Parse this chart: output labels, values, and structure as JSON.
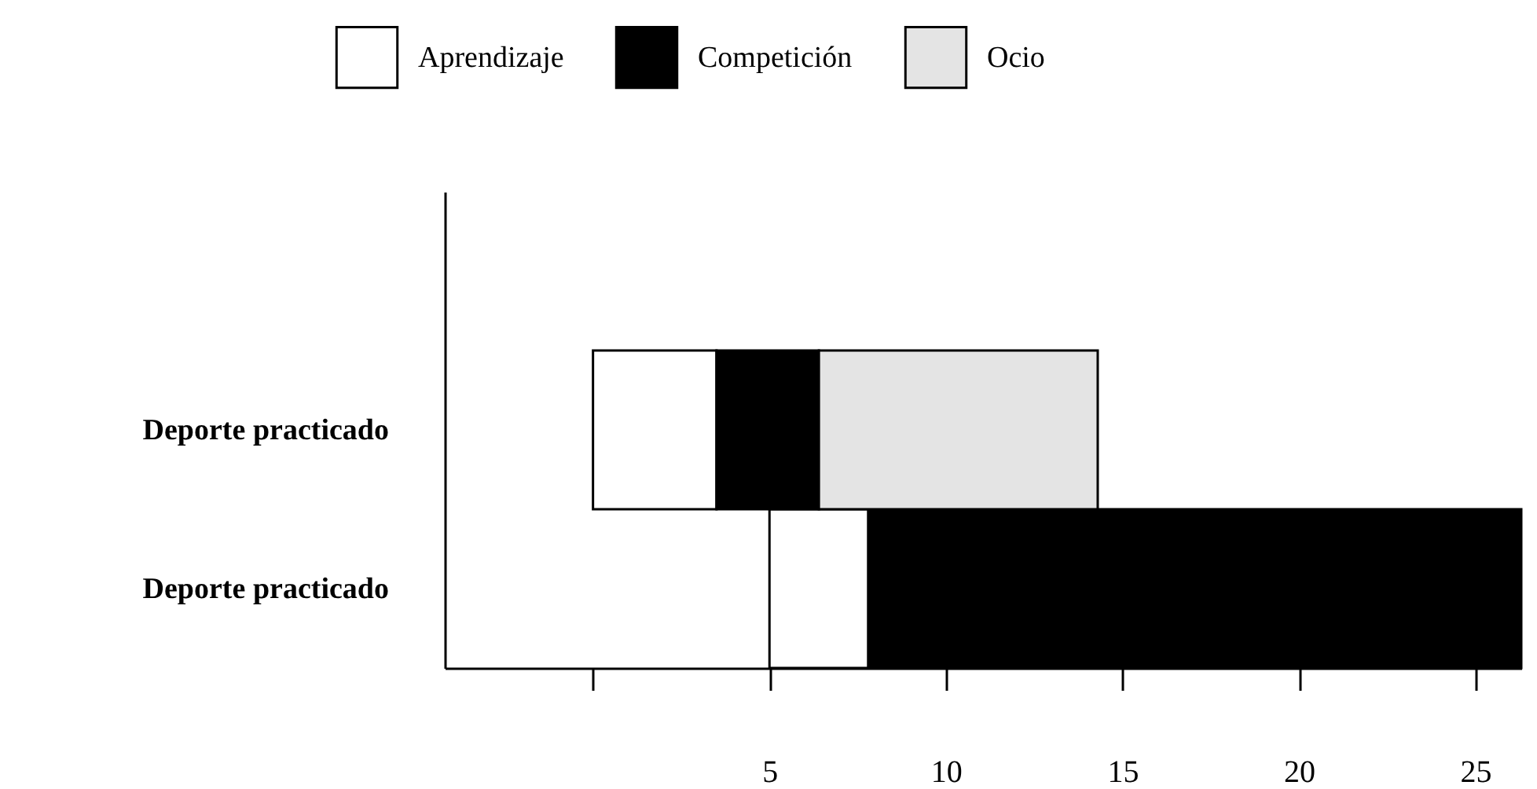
{
  "chart_data": {
    "type": "bar",
    "orientation": "horizontal",
    "categories": [
      null,
      "Deporte practicado",
      "Deporte practicado"
    ],
    "series": [
      {
        "name": "Aprendizaje",
        "color": "#ffffff",
        "base": [
          null,
          0,
          5
        ],
        "values": [
          null,
          3.5,
          2.8
        ]
      },
      {
        "name": "Competición",
        "color": "#000000",
        "base": [
          null,
          3.5,
          7.8
        ],
        "values": [
          null,
          2.9,
          18.5
        ]
      },
      {
        "name": "Ocio",
        "color": "#e4e4e4",
        "base": [
          null,
          6.4,
          null
        ],
        "values": [
          null,
          7.9,
          null
        ]
      }
    ],
    "xlim": [
      -4.2,
      26.3
    ],
    "xticks": [
      {
        "value": 0,
        "label": null
      },
      5,
      10,
      15,
      20,
      25
    ],
    "legend": "top",
    "grid": false
  }
}
